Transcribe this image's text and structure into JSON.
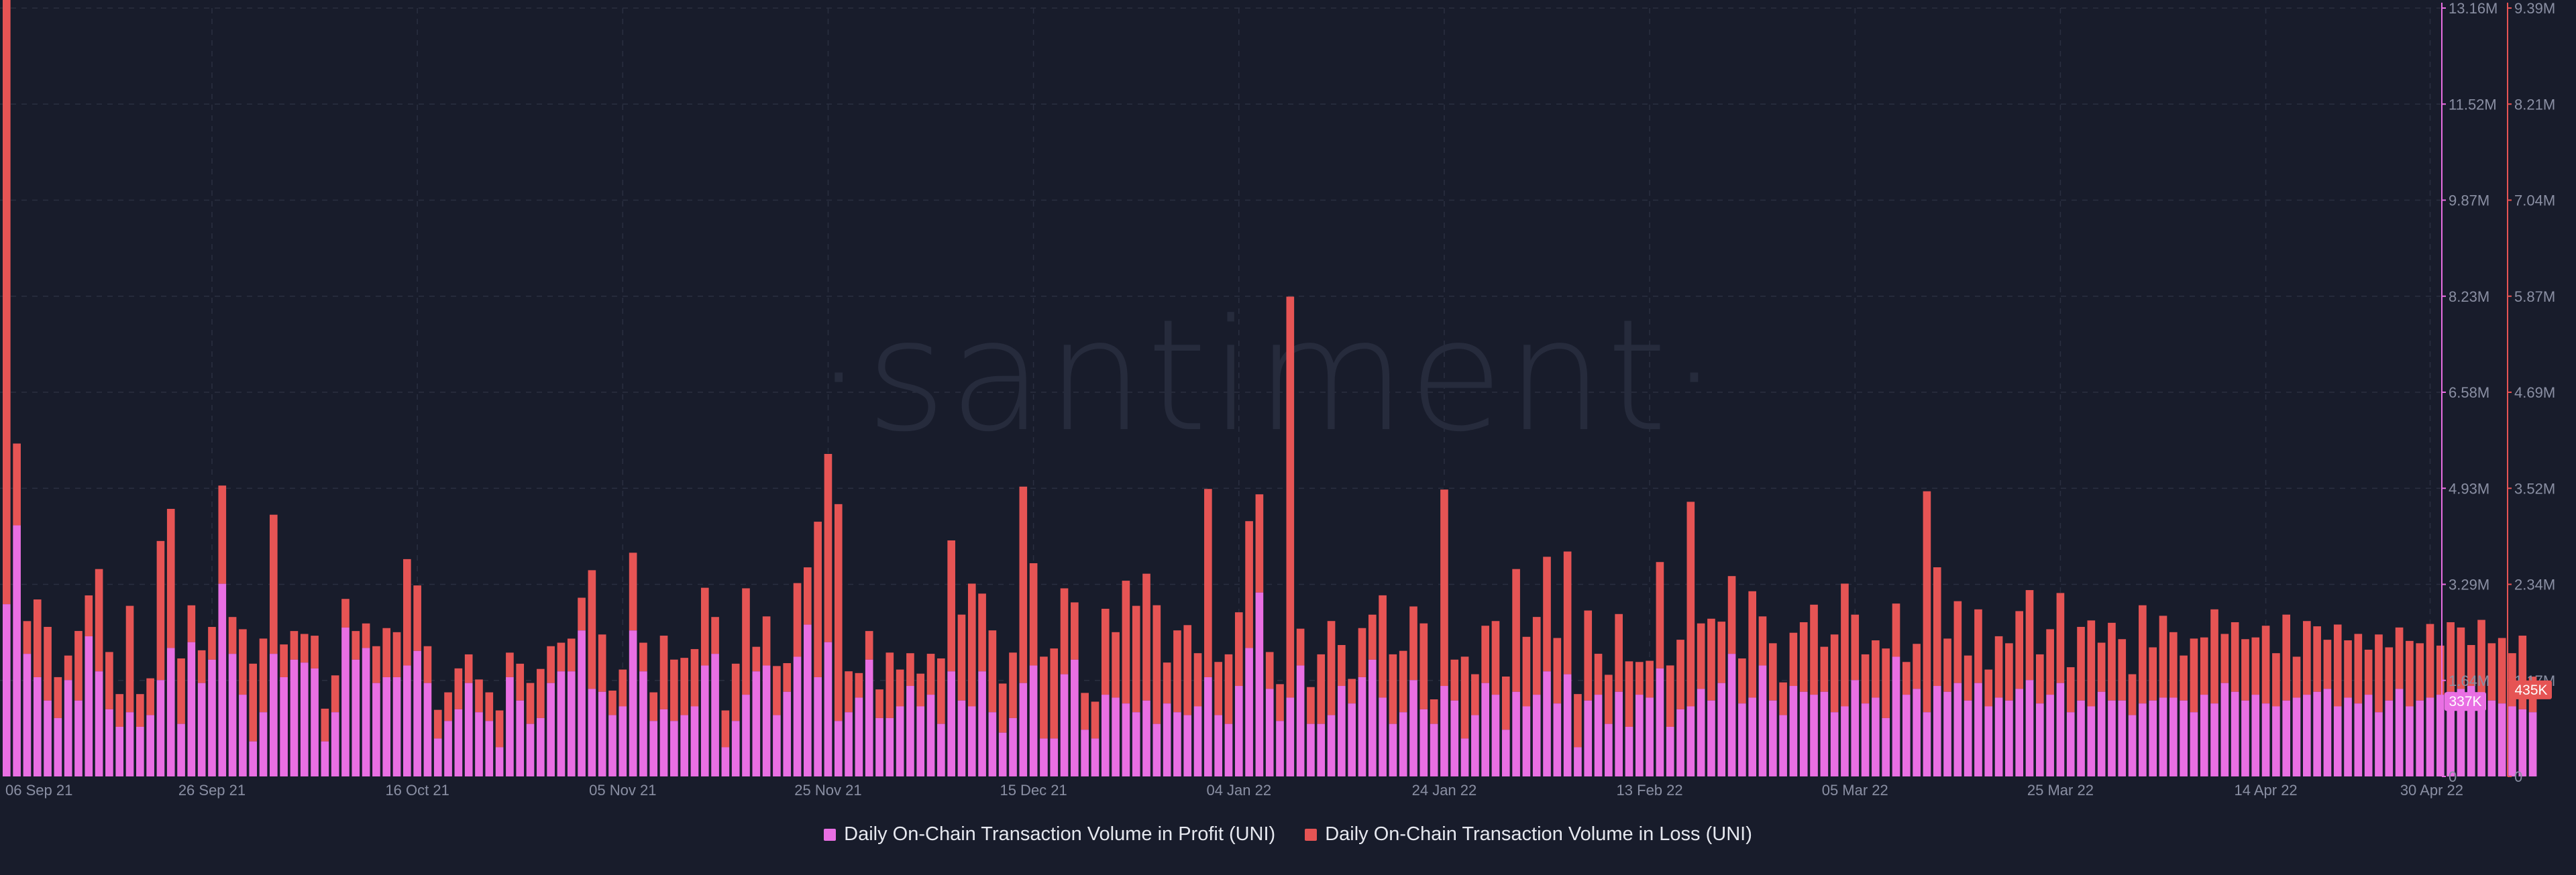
{
  "colors": {
    "background": "#181c2b",
    "profit": "#e96fe3",
    "loss": "#e65454",
    "grid": "#2a2f40",
    "axis_text": "#8a8fa3"
  },
  "watermark": {
    "text": "·santiment·"
  },
  "legend": {
    "profit_label": "Daily On-Chain Transaction Volume in Profit (UNI)",
    "loss_label": "Daily On-Chain Transaction Volume in Loss (UNI)"
  },
  "chart_data": {
    "type": "bar",
    "stacked": true,
    "title": "",
    "xlabel": "",
    "ylabel": "",
    "x_start": "2021-09-06",
    "x_end": "2022-04-30",
    "x_tick_labels": [
      "06 Sep 21",
      "26 Sep 21",
      "16 Oct 21",
      "05 Nov 21",
      "25 Nov 21",
      "15 Dec 21",
      "04 Jan 22",
      "24 Jan 22",
      "13 Feb 22",
      "05 Mar 22",
      "25 Mar 22",
      "14 Apr 22",
      "30 Apr 22"
    ],
    "y_axis_profit": {
      "ylim": [
        0,
        13160000
      ],
      "tick_labels": [
        "0",
        "1.64M",
        "3.29M",
        "4.93M",
        "6.58M",
        "8.23M",
        "9.87M",
        "11.52M",
        "13.16M"
      ],
      "current_value_label": "337K"
    },
    "y_axis_loss": {
      "ylim": [
        0,
        9390000
      ],
      "tick_labels": [
        "0",
        "1.17M",
        "2.34M",
        "3.52M",
        "4.69M",
        "5.87M",
        "7.04M",
        "8.21M",
        "9.39M"
      ],
      "current_value_label": "435K"
    },
    "grid": true,
    "legend_position": "bottom",
    "series": [
      {
        "name": "Daily On-Chain Transaction Volume in Profit (UNI)",
        "axis": "left",
        "values": [
          2950000,
          4300000,
          2100000,
          1700000,
          1300000,
          1000000,
          1650000,
          1300000,
          2400000,
          1800000,
          1150000,
          850000,
          1100000,
          850000,
          1050000,
          1650000,
          2200000,
          900000,
          2300000,
          1600000,
          2000000,
          3300000,
          2100000,
          1400000,
          600000,
          1100000,
          2100000,
          1700000,
          2000000,
          1950000,
          1850000,
          600000,
          1100000,
          2550000,
          2000000,
          2200000,
          1600000,
          1700000,
          1700000,
          1900000,
          2150000,
          1600000,
          650000,
          950000,
          1150000,
          1600000,
          1100000,
          950000,
          500000,
          1700000,
          1300000,
          900000,
          1000000,
          1600000,
          1800000,
          1800000,
          2500000,
          1500000,
          1450000,
          1050000,
          1200000,
          2500000,
          1800000,
          950000,
          1150000,
          950000,
          1050000,
          1200000,
          1900000,
          2100000,
          500000,
          950000,
          1400000,
          1800000,
          1900000,
          1050000,
          1450000,
          2050000,
          2600000,
          1700000,
          2300000,
          950000,
          1100000,
          1350000,
          2000000,
          1000000,
          1000000,
          1200000,
          1550000,
          1200000,
          1400000,
          900000,
          1800000,
          1300000,
          1200000,
          1800000,
          1100000,
          750000,
          1000000,
          1600000,
          1900000,
          650000,
          650000,
          1750000,
          2000000,
          800000,
          650000,
          1400000,
          1350000,
          1250000,
          1100000,
          1300000,
          900000,
          1250000,
          1100000,
          1050000,
          1200000,
          1700000,
          1050000,
          900000,
          1550000,
          2200000,
          3150000,
          1500000,
          950000,
          1350000,
          1900000,
          900000,
          900000,
          1050000,
          1550000,
          1250000,
          1700000,
          2000000,
          1350000,
          900000,
          1100000,
          1650000,
          1150000,
          900000,
          1550000,
          1300000,
          650000,
          1050000,
          1600000,
          1400000,
          800000,
          1450000,
          1200000,
          1400000,
          1800000,
          1250000,
          1750000,
          500000,
          1300000,
          1400000,
          900000,
          1450000,
          850000,
          1400000,
          1350000,
          1850000,
          850000,
          1150000,
          1200000,
          1500000,
          1300000,
          1600000,
          2100000,
          1250000,
          1350000,
          1900000,
          1300000,
          1050000,
          1550000,
          1450000,
          1400000,
          1450000,
          1100000,
          1200000,
          1650000,
          1250000,
          1350000,
          1000000,
          2050000,
          1400000,
          1500000,
          1100000,
          1550000,
          1450000,
          1600000,
          1300000,
          1600000,
          1200000,
          1350000,
          1300000,
          1500000,
          1650000,
          1250000,
          1400000,
          1600000,
          1100000,
          1300000,
          1200000,
          1450000,
          1300000,
          1300000,
          1050000,
          1250000,
          1300000,
          1350000,
          1350000,
          1300000,
          1100000,
          1400000,
          1250000,
          1600000,
          1450000,
          1300000,
          1400000,
          1250000,
          1200000,
          1300000,
          1350000,
          1400000,
          1450000,
          1500000,
          1200000,
          1350000,
          1250000,
          1400000,
          1100000,
          1300000,
          1500000,
          1200000,
          1300000,
          1350000,
          1400000,
          1450000,
          1500000,
          1550000,
          1350000,
          1300000,
          1250000,
          1200000,
          1150000,
          1100000,
          1050000,
          337000
        ]
      },
      {
        "name": "Daily On-Chain Transaction Volume in Loss (UNI)",
        "axis": "right",
        "values": [
          7400000,
          1000000,
          400000,
          950000,
          900000,
          500000,
          300000,
          850000,
          500000,
          1250000,
          700000,
          400000,
          1300000,
          400000,
          450000,
          1700000,
          1700000,
          800000,
          450000,
          400000,
          400000,
          1200000,
          450000,
          800000,
          950000,
          900000,
          1700000,
          400000,
          350000,
          350000,
          400000,
          400000,
          450000,
          350000,
          350000,
          300000,
          450000,
          600000,
          550000,
          1300000,
          800000,
          450000,
          350000,
          350000,
          500000,
          350000,
          400000,
          350000,
          450000,
          300000,
          450000,
          500000,
          600000,
          450000,
          350000,
          400000,
          400000,
          1450000,
          700000,
          300000,
          450000,
          950000,
          350000,
          350000,
          900000,
          750000,
          700000,
          700000,
          950000,
          450000,
          450000,
          700000,
          1300000,
          300000,
          600000,
          600000,
          350000,
          900000,
          700000,
          1900000,
          2300000,
          2650000,
          500000,
          300000,
          350000,
          350000,
          800000,
          450000,
          400000,
          400000,
          500000,
          800000,
          1600000,
          1050000,
          1500000,
          950000,
          1000000,
          600000,
          800000,
          2400000,
          1250000,
          1000000,
          1100000,
          1050000,
          700000,
          450000,
          450000,
          1050000,
          800000,
          1500000,
          1300000,
          1550000,
          1450000,
          500000,
          1000000,
          1100000,
          650000,
          2300000,
          650000,
          850000,
          900000,
          1550000,
          1200000,
          450000,
          450000,
          4900000,
          450000,
          450000,
          850000,
          1150000,
          500000,
          300000,
          600000,
          550000,
          1250000,
          850000,
          750000,
          900000,
          1050000,
          300000,
          2400000,
          500000,
          1000000,
          500000,
          700000,
          900000,
          650000,
          1500000,
          850000,
          950000,
          1400000,
          800000,
          1500000,
          650000,
          1100000,
          500000,
          600000,
          950000,
          800000,
          400000,
          450000,
          1300000,
          750000,
          850000,
          2500000,
          800000,
          1000000,
          750000,
          950000,
          550000,
          1300000,
          600000,
          700000,
          400000,
          650000,
          850000,
          1100000,
          550000,
          950000,
          1500000,
          800000,
          600000,
          700000,
          850000,
          650000,
          400000,
          550000,
          2700000,
          1450000,
          650000,
          1000000,
          550000,
          900000,
          450000,
          750000,
          700000,
          950000,
          1100000,
          600000,
          800000,
          1100000,
          550000,
          900000,
          1050000,
          600000,
          950000,
          750000,
          500000,
          1200000,
          650000,
          1000000,
          800000,
          550000,
          900000,
          700000,
          1150000,
          600000,
          850000,
          750000,
          700000,
          950000,
          650000,
          1050000,
          500000,
          900000,
          800000,
          600000,
          1000000,
          700000,
          850000,
          550000,
          950000,
          650000,
          750000,
          800000,
          700000,
          900000,
          600000,
          850000,
          750000,
          500000,
          950000,
          700000,
          800000,
          650000,
          900000,
          435000
        ]
      }
    ]
  }
}
